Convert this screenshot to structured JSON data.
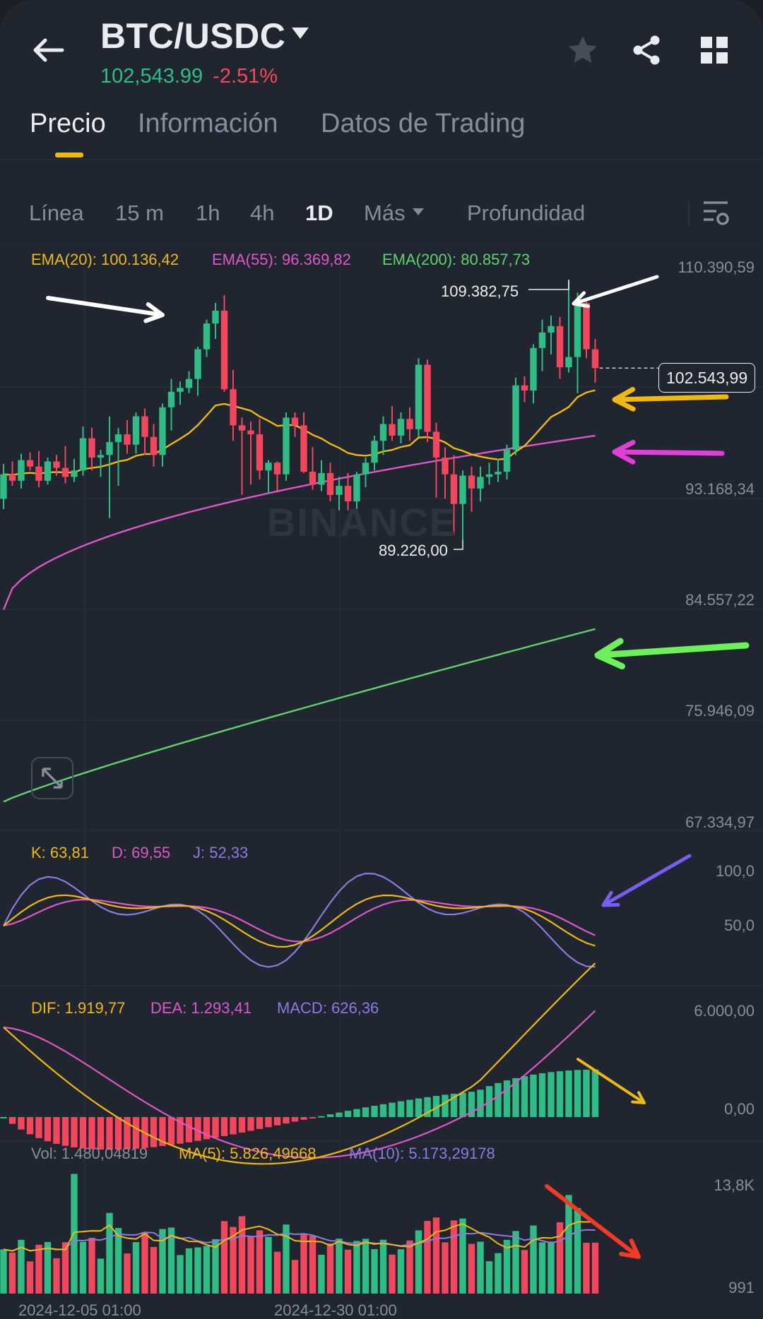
{
  "header": {
    "pair": "BTC/USDC",
    "price": "102,543.99",
    "change": "-2.51%"
  },
  "tabs": [
    {
      "label": "Precio",
      "active": true
    },
    {
      "label": "Información",
      "active": false
    },
    {
      "label": "Datos de Trading",
      "active": false
    }
  ],
  "intervals": [
    {
      "label": "Línea"
    },
    {
      "label": "15 m"
    },
    {
      "label": "1h"
    },
    {
      "label": "4h"
    },
    {
      "label": "1D",
      "active": true
    },
    {
      "label": "Más"
    },
    {
      "label": "Profundidad"
    }
  ],
  "legends": {
    "ema20": "EMA(20): 100.136,42",
    "ema55": "EMA(55): 96.369,82",
    "ema200": "EMA(200): 80.857,73",
    "k": "K: 63,81",
    "d": "D: 69,55",
    "j": "J: 52,33",
    "dif": "DIF: 1.919,77",
    "dea": "DEA: 1.293,41",
    "macd": "MACD: 626,36",
    "vol": "Vol: 1.480,04819",
    "ma5": "MA(5): 5.826,49668",
    "ma10": "MA(10): 5.173,29178"
  },
  "price_axis": [
    "110.390,59",
    "93.168,34",
    "84.557,22",
    "75.946,09",
    "67.334,97"
  ],
  "kdj_axis": [
    "100,0",
    "50,0"
  ],
  "macd_axis": [
    "6.000,00",
    "0,00"
  ],
  "vol_axis": [
    "13,8K",
    "991"
  ],
  "time_axis": [
    "2024-12-05 01:00",
    "2024-12-30 01:00"
  ],
  "current_price_label": "102.543,99",
  "high_label": "109.382,75",
  "low_label": "89.226,00",
  "watermark": "BINANCE",
  "colors": {
    "up": "#2ebd85",
    "down": "#f6465d",
    "ema20": "#f0b90b",
    "ema55": "#e056c8",
    "ema200": "#5fd36b",
    "j": "#8c7ae0"
  },
  "chart_data": {
    "type": "candlestick",
    "price_range": [
      67334.97,
      110390.59
    ],
    "candles": [
      [
        92400,
        95100,
        91600,
        94300
      ],
      [
        94300,
        95300,
        93400,
        93800
      ],
      [
        93800,
        95900,
        93200,
        95400
      ],
      [
        95400,
        96000,
        94600,
        94900
      ],
      [
        94900,
        96100,
        93300,
        93800
      ],
      [
        93800,
        95600,
        93500,
        95300
      ],
      [
        95300,
        95800,
        94200,
        94800
      ],
      [
        94800,
        96500,
        93600,
        94100
      ],
      [
        94100,
        95500,
        93700,
        94600
      ],
      [
        94600,
        98000,
        94200,
        97100
      ],
      [
        97100,
        97900,
        94600,
        95600
      ],
      [
        95600,
        96200,
        94100,
        95800
      ],
      [
        95800,
        98800,
        90900,
        96800
      ],
      [
        96800,
        97900,
        93400,
        97400
      ],
      [
        97400,
        98500,
        95900,
        96600
      ],
      [
        96600,
        99100,
        95900,
        98800
      ],
      [
        98800,
        99400,
        95800,
        97200
      ],
      [
        97200,
        98200,
        94900,
        95800
      ],
      [
        95800,
        99800,
        94900,
        99500
      ],
      [
        99500,
        101700,
        97700,
        100700
      ],
      [
        100700,
        101500,
        99700,
        101000
      ],
      [
        101000,
        102300,
        100600,
        101700
      ],
      [
        101700,
        104200,
        100400,
        104000
      ],
      [
        104000,
        106300,
        103400,
        106000
      ],
      [
        106000,
        107600,
        104800,
        107000
      ],
      [
        107000,
        108200,
        100700,
        100900
      ],
      [
        100900,
        102400,
        96900,
        98100
      ],
      [
        98100,
        98700,
        92700,
        97700
      ],
      [
        97700,
        98400,
        93500,
        97400
      ],
      [
        97400,
        98600,
        93900,
        94600
      ],
      [
        94600,
        95400,
        92800,
        95200
      ],
      [
        95200,
        95300,
        93000,
        94300
      ],
      [
        94300,
        99100,
        93800,
        98700
      ],
      [
        98700,
        99100,
        97200,
        98100
      ],
      [
        98100,
        99100,
        94400,
        94500
      ],
      [
        94500,
        96400,
        93100,
        93500
      ],
      [
        93500,
        95400,
        93000,
        94400
      ],
      [
        94400,
        95200,
        92200,
        92700
      ],
      [
        92700,
        94100,
        91500,
        93400
      ],
      [
        93400,
        94400,
        91500,
        92200
      ],
      [
        92200,
        94500,
        91400,
        94300
      ],
      [
        94300,
        95600,
        93300,
        95200
      ],
      [
        95200,
        97300,
        94600,
        96900
      ],
      [
        96900,
        98800,
        95800,
        98200
      ],
      [
        98200,
        99600,
        96900,
        97300
      ],
      [
        97300,
        99100,
        96700,
        98600
      ],
      [
        98600,
        99500,
        96900,
        97800
      ],
      [
        97800,
        103300,
        97200,
        102800
      ],
      [
        102800,
        103200,
        96800,
        97600
      ],
      [
        97600,
        98300,
        92500,
        95600
      ],
      [
        95600,
        96400,
        92400,
        94300
      ],
      [
        94300,
        95800,
        89600,
        92000
      ],
      [
        92000,
        94600,
        89226,
        94200
      ],
      [
        94200,
        94900,
        91400,
        93200
      ],
      [
        93200,
        94900,
        92200,
        94100
      ],
      [
        94100,
        95200,
        93500,
        94300
      ],
      [
        94300,
        95500,
        93700,
        94500
      ],
      [
        94500,
        96600,
        93900,
        96200
      ],
      [
        96200,
        101800,
        95800,
        101200
      ],
      [
        101200,
        101900,
        99900,
        100800
      ],
      [
        100800,
        104400,
        99800,
        104100
      ],
      [
        104100,
        106300,
        102300,
        105300
      ],
      [
        105300,
        106600,
        103600,
        105800
      ],
      [
        105800,
        106500,
        101700,
        102600
      ],
      [
        102600,
        109382.75,
        102200,
        103400
      ],
      [
        103400,
        108400,
        100600,
        107600
      ],
      [
        107600,
        107800,
        103300,
        104000
      ],
      [
        104000,
        104800,
        101400,
        102544
      ]
    ]
  }
}
